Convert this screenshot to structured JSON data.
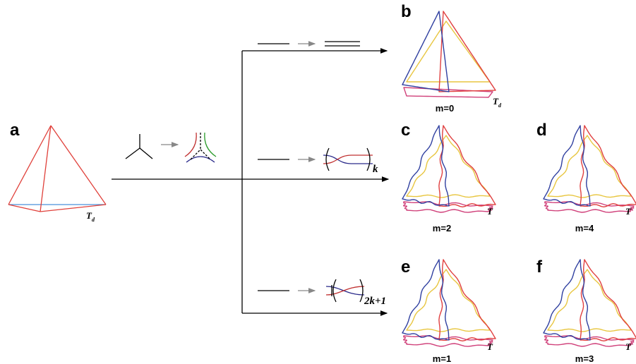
{
  "panels": [
    {
      "label": "a",
      "symmetry": "T",
      "subscript": "d"
    },
    {
      "label": "b",
      "caption": "m=0",
      "symmetry": "T",
      "subscript": "d"
    },
    {
      "label": "c",
      "caption": "m=2",
      "symmetry": "T"
    },
    {
      "label": "d",
      "caption": "m=4",
      "symmetry": "T"
    },
    {
      "label": "e",
      "caption": "m=1",
      "symmetry": "T"
    },
    {
      "label": "f",
      "caption": "m=3",
      "symmetry": "T"
    }
  ],
  "rules": [
    {
      "multiplier": "k"
    },
    {
      "multiplier": "2k+1"
    }
  ]
}
